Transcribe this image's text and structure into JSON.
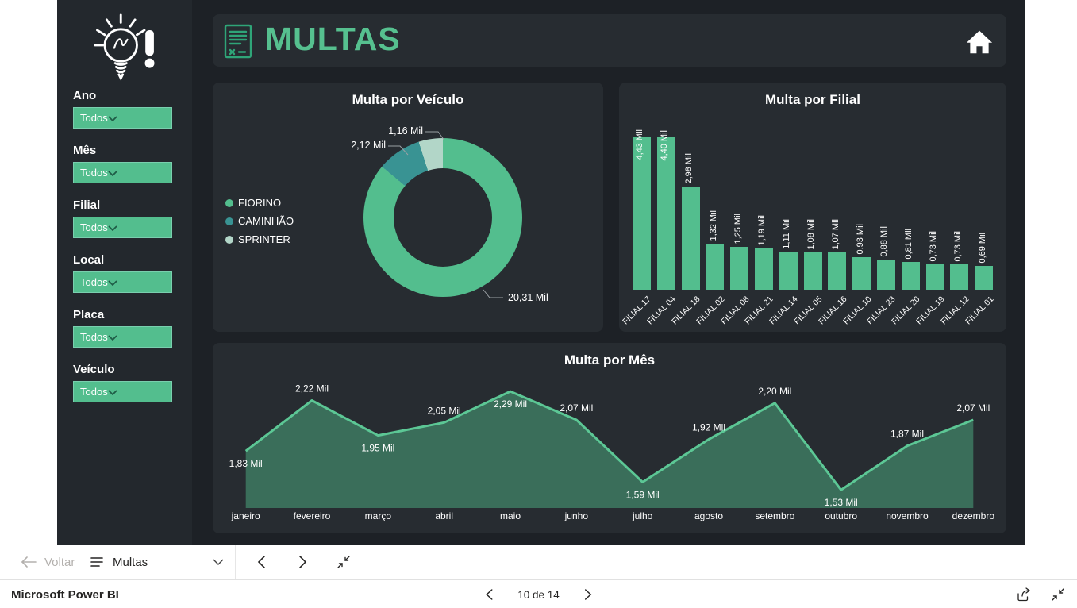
{
  "colors": {
    "green": "#53BE8E",
    "teal": "#399393",
    "light_green": "#B2D6C8",
    "line": "#5CC795",
    "area_fill": "rgba(83,190,142,0.45)",
    "card_bg": "#272C31",
    "page_bg": "#1D2126",
    "sidebar_bg": "#23282D"
  },
  "sidebar": {
    "filters": [
      {
        "label": "Ano",
        "value": "Todos"
      },
      {
        "label": "Mês",
        "value": "Todos"
      },
      {
        "label": "Filial",
        "value": "Todos"
      },
      {
        "label": "Local",
        "value": "Todos"
      },
      {
        "label": "Placa",
        "value": "Todos"
      },
      {
        "label": "Veículo",
        "value": "Todos"
      }
    ]
  },
  "header": {
    "title": "MULTAS"
  },
  "chart_data": [
    {
      "type": "pie",
      "title": "Multa por Veículo",
      "categories": [
        "FIORINO",
        "CAMINHÃO",
        "SPRINTER"
      ],
      "values": [
        20.31,
        2.12,
        1.16
      ],
      "labels": [
        "20,31 Mil",
        "2,12 Mil",
        "1,16 Mil"
      ],
      "unit": "Mil",
      "legend_position": "left"
    },
    {
      "type": "bar",
      "title": "Multa por Filial",
      "categories": [
        "FILIAL 17",
        "FILIAL 04",
        "FILIAL 18",
        "FILIAL 02",
        "FILIAL 08",
        "FILIAL 21",
        "FILIAL 14",
        "FILIAL 05",
        "FILIAL 16",
        "FILIAL 10",
        "FILIAL 23",
        "FILIAL 20",
        "FILIAL 19",
        "FILIAL 12",
        "FILIAL 01"
      ],
      "values": [
        4.43,
        4.4,
        2.98,
        1.32,
        1.25,
        1.19,
        1.11,
        1.08,
        1.07,
        0.93,
        0.88,
        0.81,
        0.73,
        0.73,
        0.69
      ],
      "labels": [
        "4,43 Mil",
        "4,40 Mil",
        "2,98 Mil",
        "1,32 Mil",
        "1,25 Mil",
        "1,19 Mil",
        "1,11 Mil",
        "1,08 Mil",
        "1,07 Mil",
        "0,93 Mil",
        "0,88 Mil",
        "0,81 Mil",
        "0,73 Mil",
        "0,73 Mil",
        "0,69 Mil"
      ],
      "ylim": [
        0,
        4.43
      ],
      "grid": false
    },
    {
      "type": "area",
      "title": "Multa por Mês",
      "categories": [
        "janeiro",
        "fevereiro",
        "março",
        "abril",
        "maio",
        "junho",
        "julho",
        "agosto",
        "setembro",
        "outubro",
        "novembro",
        "dezembro"
      ],
      "values": [
        1.83,
        2.22,
        1.95,
        2.05,
        2.29,
        2.07,
        1.59,
        1.92,
        2.2,
        1.53,
        1.87,
        2.07
      ],
      "labels": [
        "1,83 Mil",
        "2,22 Mil",
        "1,95 Mil",
        "2,05 Mil",
        "2,29 Mil",
        "2,07 Mil",
        "1,59 Mil",
        "1,92 Mil",
        "2,20 Mil",
        "1,53 Mil",
        "1,87 Mil",
        "2,07 Mil"
      ],
      "label_below_indices": [
        0,
        2,
        4,
        6,
        9
      ],
      "ylim": [
        1.39,
        2.29
      ],
      "grid": false
    }
  ],
  "page_nav": {
    "back_label": "Voltar",
    "page_name": "Multas"
  },
  "status_bar": {
    "brand": "Microsoft Power BI",
    "pagination": "10 de 14",
    "current_page": 10,
    "total_pages": 14
  },
  "icons": {
    "logo": "lightbulb-exclamation",
    "header_icon": "fine-document",
    "home": "home",
    "filter_dropdown": "chevron-down",
    "back": "arrow-left",
    "page_menu": "hamburger",
    "prev": "chevron-left",
    "next": "chevron-right",
    "collapse": "exit-fullscreen",
    "share": "share"
  }
}
